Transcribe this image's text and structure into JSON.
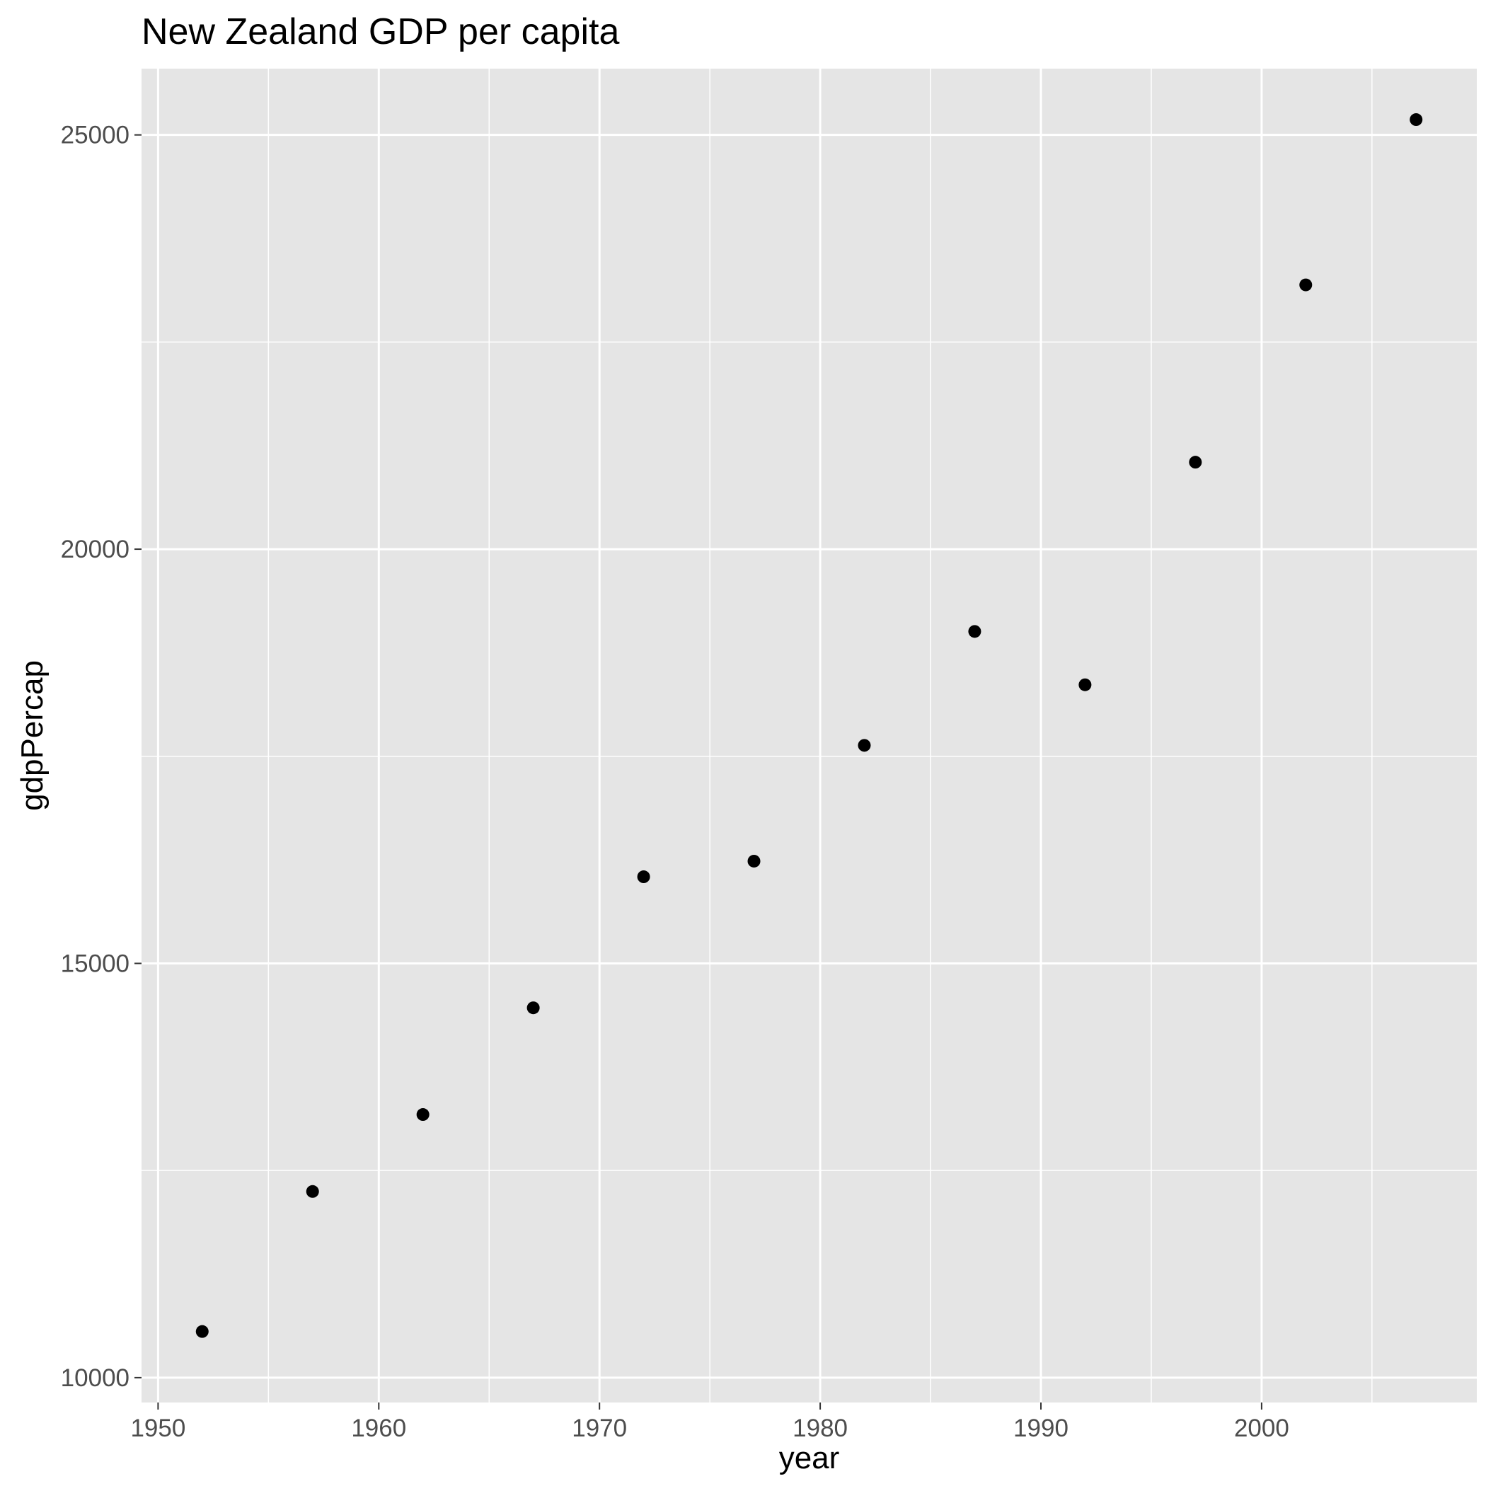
{
  "chart_data": {
    "type": "scatter",
    "title": "New Zealand GDP per capita",
    "xlabel": "year",
    "ylabel": "gdpPercap",
    "xlim": [
      1949.25,
      2009.75
    ],
    "ylim": [
      9700,
      25800
    ],
    "x_major_ticks": [
      1950,
      1960,
      1970,
      1980,
      1990,
      2000
    ],
    "x_minor_ticks": [
      1955,
      1965,
      1975,
      1985,
      1995,
      2005
    ],
    "y_major_ticks": [
      10000,
      15000,
      20000,
      25000
    ],
    "y_minor_ticks": [
      12500,
      17500,
      22500
    ],
    "x_tick_labels": [
      "1950",
      "1960",
      "1970",
      "1980",
      "1990",
      "2000"
    ],
    "y_tick_labels": [
      "10000",
      "15000",
      "20000",
      "25000"
    ],
    "grid": true,
    "legend": "none",
    "colors": {
      "panel_background": "#e5e5e5",
      "grid_line": "#ffffff",
      "point": "#000000",
      "tick_mark": "#333333",
      "tick_label": "#4d4d4d"
    },
    "series": [
      {
        "x": [
          1952,
          1957,
          1962,
          1967,
          1972,
          1977,
          1982,
          1987,
          1992,
          1997,
          2002,
          2007
        ],
        "y": [
          10557,
          12247,
          13176,
          14464,
          16046,
          16234,
          17632,
          19007,
          18363,
          21050,
          23190,
          25185
        ]
      }
    ]
  }
}
